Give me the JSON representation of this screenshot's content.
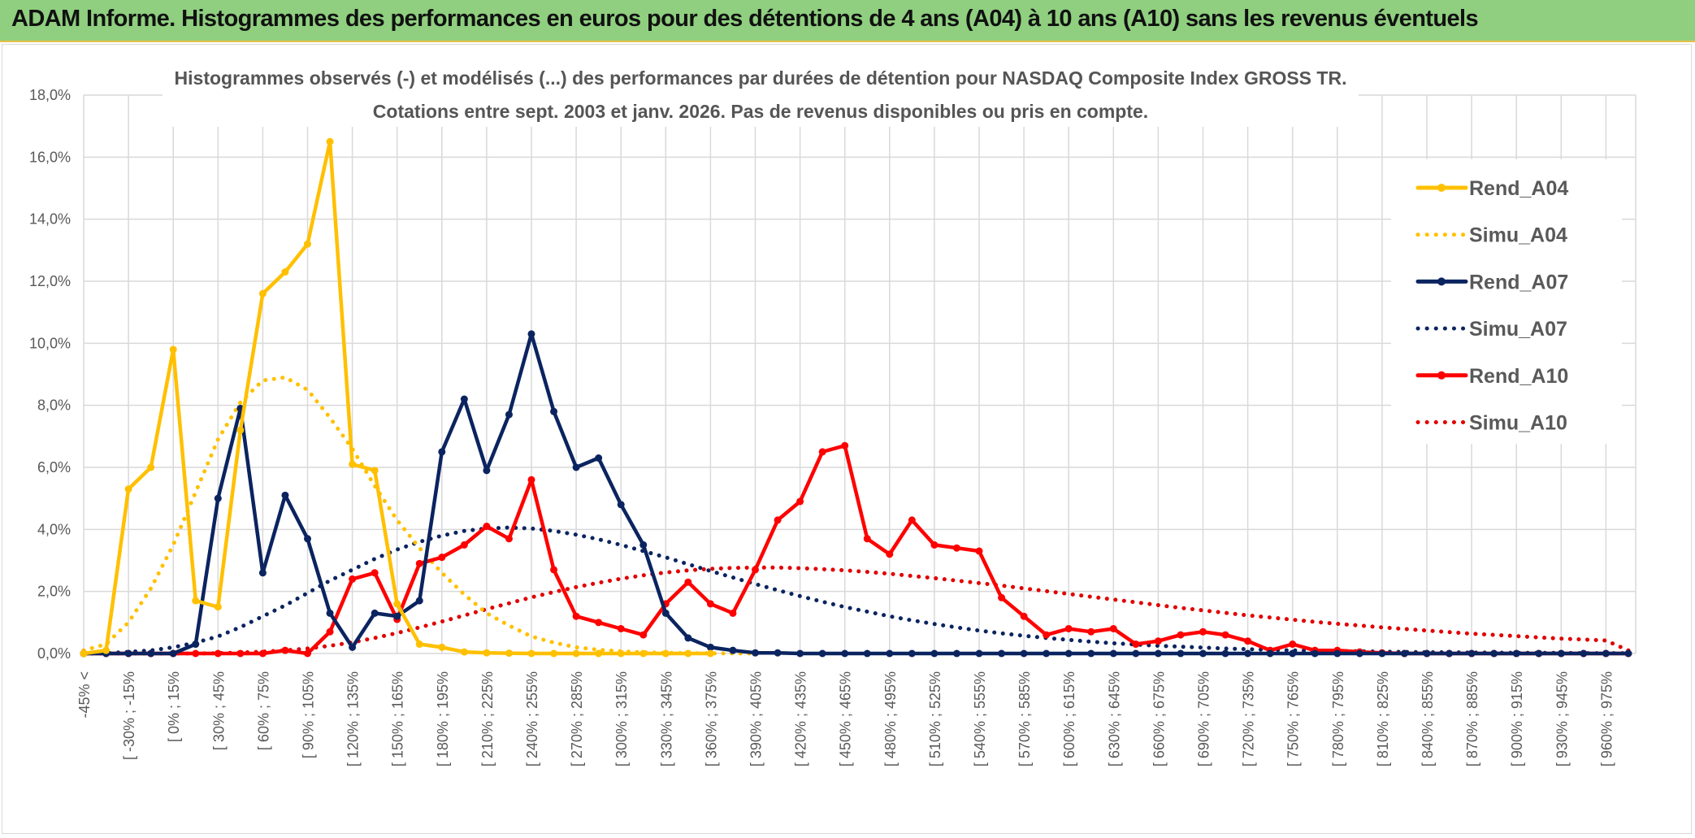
{
  "header": {
    "title": "ADAM Informe. Histogrammes des performances en euros pour des détentions de 4 ans (A04) à 10 ans (A10) sans les revenus éventuels"
  },
  "chart_data": {
    "type": "line",
    "title": "Histogrammes observés (-) et modélisés (...) des performances par durées de détention pour NASDAQ Composite Index GROSS TR.",
    "subtitle": "Cotations entre sept. 2003 et janv. 2026. Pas de revenus disponibles ou pris en compte.",
    "ylim": [
      0,
      18
    ],
    "yticks": [
      "0,0%",
      "2,0%",
      "4,0%",
      "6,0%",
      "8,0%",
      "10,0%",
      "12,0%",
      "14,0%",
      "16,0%",
      "18,0%"
    ],
    "xticklabels": [
      "-45% <",
      "[ -30% ; -15%",
      "[ 0% ; 15%",
      "[ 30% ; 45%",
      "[ 60% ; 75%",
      "[ 90% ; 105%",
      "[ 120% ; 135%",
      "[ 150% ; 165%",
      "[ 180% ; 195%",
      "[ 210% ; 225%",
      "[ 240% ; 255%",
      "[ 270% ; 285%",
      "[ 300% ; 315%",
      "[ 330% ; 345%",
      "[ 360% ; 375%",
      "[ 390% ; 405%",
      "[ 420% ; 435%",
      "[ 450% ; 465%",
      "[ 480% ; 495%",
      "[ 510% ; 525%",
      "[ 540% ; 555%",
      "[ 570% ; 585%",
      "[ 600% ; 615%",
      "[ 630% ; 645%",
      "[ 660% ; 675%",
      "[ 690% ; 705%",
      "[ 720% ; 735%",
      "[ 750% ; 765%",
      "[ 780% ; 795%",
      "[ 810% ; 825%",
      "[ 840% ; 855%",
      "[ 870% ; 885%",
      "[ 900% ; 915%",
      "[ 930% ; 945%",
      "[ 960% ; 975%"
    ],
    "series": [
      {
        "name": "Rend_A04",
        "color": "#ffc000",
        "style": "solid",
        "values": [
          0,
          0.1,
          5.3,
          6.0,
          9.8,
          1.7,
          1.5,
          7.2,
          11.6,
          12.3,
          13.2,
          16.5,
          6.1,
          5.9,
          1.6,
          0.3,
          0.2,
          0.05,
          0.02,
          0.01,
          0,
          0,
          0,
          0,
          0,
          0,
          0,
          0,
          0
        ]
      },
      {
        "name": "Simu_A04",
        "color": "#ffc000",
        "style": "dotted",
        "values": [
          0.1,
          0.3,
          1.0,
          2.1,
          3.5,
          5.2,
          6.9,
          8.1,
          8.8,
          8.9,
          8.5,
          7.6,
          6.6,
          5.4,
          4.3,
          3.4,
          2.6,
          1.9,
          1.3,
          0.9,
          0.55,
          0.35,
          0.2,
          0.12,
          0.07,
          0.04,
          0.02,
          0.01,
          0.005,
          0.002,
          0
        ]
      },
      {
        "name": "Rend_A07",
        "color": "#0b2460",
        "style": "solid",
        "values": [
          0,
          0,
          0,
          0,
          0,
          0.3,
          5.0,
          7.9,
          2.6,
          5.1,
          3.7,
          1.3,
          0.2,
          1.3,
          1.2,
          1.7,
          6.5,
          8.2,
          5.9,
          7.7,
          10.3,
          7.8,
          6.0,
          6.3,
          4.8,
          3.5,
          1.3,
          0.5,
          0.2,
          0.1,
          0.02,
          0.02,
          0,
          0,
          0,
          0,
          0,
          0,
          0,
          0,
          0,
          0,
          0,
          0,
          0,
          0,
          0,
          0,
          0,
          0,
          0,
          0,
          0,
          0,
          0,
          0,
          0,
          0,
          0,
          0,
          0,
          0,
          0,
          0,
          0,
          0,
          0,
          0,
          0,
          0
        ]
      },
      {
        "name": "Simu_A07",
        "color": "#0b2460",
        "style": "dotted",
        "values": [
          0,
          0.01,
          0.05,
          0.1,
          0.2,
          0.35,
          0.55,
          0.85,
          1.2,
          1.55,
          1.95,
          2.35,
          2.7,
          3.05,
          3.35,
          3.6,
          3.8,
          3.95,
          4.03,
          4.06,
          4.03,
          3.95,
          3.83,
          3.68,
          3.5,
          3.3,
          3.1,
          2.88,
          2.66,
          2.45,
          2.24,
          2.04,
          1.85,
          1.67,
          1.5,
          1.35,
          1.2,
          1.07,
          0.95,
          0.84,
          0.74,
          0.65,
          0.57,
          0.5,
          0.44,
          0.38,
          0.33,
          0.29,
          0.25,
          0.22,
          0.19,
          0.16,
          0.14,
          0.12,
          0.1,
          0.09,
          0.08,
          0.07,
          0.06,
          0.05,
          0.04,
          0.04,
          0.03,
          0.03,
          0.02,
          0.02,
          0.02,
          0.01,
          0.01,
          0.01
        ]
      },
      {
        "name": "Rend_A10",
        "color": "#ff0000",
        "style": "solid",
        "values": [
          0,
          0,
          0,
          0,
          0,
          0,
          0,
          0,
          0,
          0.1,
          0,
          0.7,
          2.4,
          2.6,
          1.1,
          2.9,
          3.1,
          3.5,
          4.1,
          3.7,
          5.6,
          2.7,
          1.2,
          1.0,
          0.8,
          0.6,
          1.6,
          2.3,
          1.6,
          1.3,
          2.7,
          4.3,
          4.9,
          6.5,
          6.7,
          3.7,
          3.2,
          4.3,
          3.5,
          3.4,
          3.3,
          1.8,
          1.2,
          0.6,
          0.8,
          0.7,
          0.8,
          0.3,
          0.4,
          0.6,
          0.7,
          0.6,
          0.4,
          0.1,
          0.3,
          0.1,
          0.1,
          0.05,
          0.02,
          0,
          0,
          0,
          0,
          0,
          0,
          0,
          0,
          0,
          0,
          0
        ]
      },
      {
        "name": "Simu_A10",
        "color": "#e00000",
        "style": "dotted",
        "values": [
          0,
          0,
          0,
          0,
          0,
          0,
          0.01,
          0.03,
          0.06,
          0.1,
          0.16,
          0.25,
          0.36,
          0.5,
          0.66,
          0.84,
          1.03,
          1.23,
          1.43,
          1.62,
          1.81,
          1.98,
          2.14,
          2.28,
          2.41,
          2.52,
          2.61,
          2.68,
          2.73,
          2.76,
          2.77,
          2.77,
          2.75,
          2.72,
          2.68,
          2.63,
          2.57,
          2.5,
          2.43,
          2.35,
          2.27,
          2.19,
          2.1,
          2.01,
          1.92,
          1.83,
          1.74,
          1.65,
          1.56,
          1.47,
          1.39,
          1.31,
          1.23,
          1.16,
          1.09,
          1.02,
          0.96,
          0.9,
          0.84,
          0.79,
          0.74,
          0.69,
          0.64,
          0.6,
          0.56,
          0.52,
          0.48,
          0.45,
          0.42,
          0.1
        ]
      }
    ],
    "legend": [
      "Rend_A04",
      "Simu_A04",
      "Rend_A07",
      "Simu_A07",
      "Rend_A10",
      "Simu_A10"
    ],
    "legend_position": "right",
    "grid": true
  }
}
